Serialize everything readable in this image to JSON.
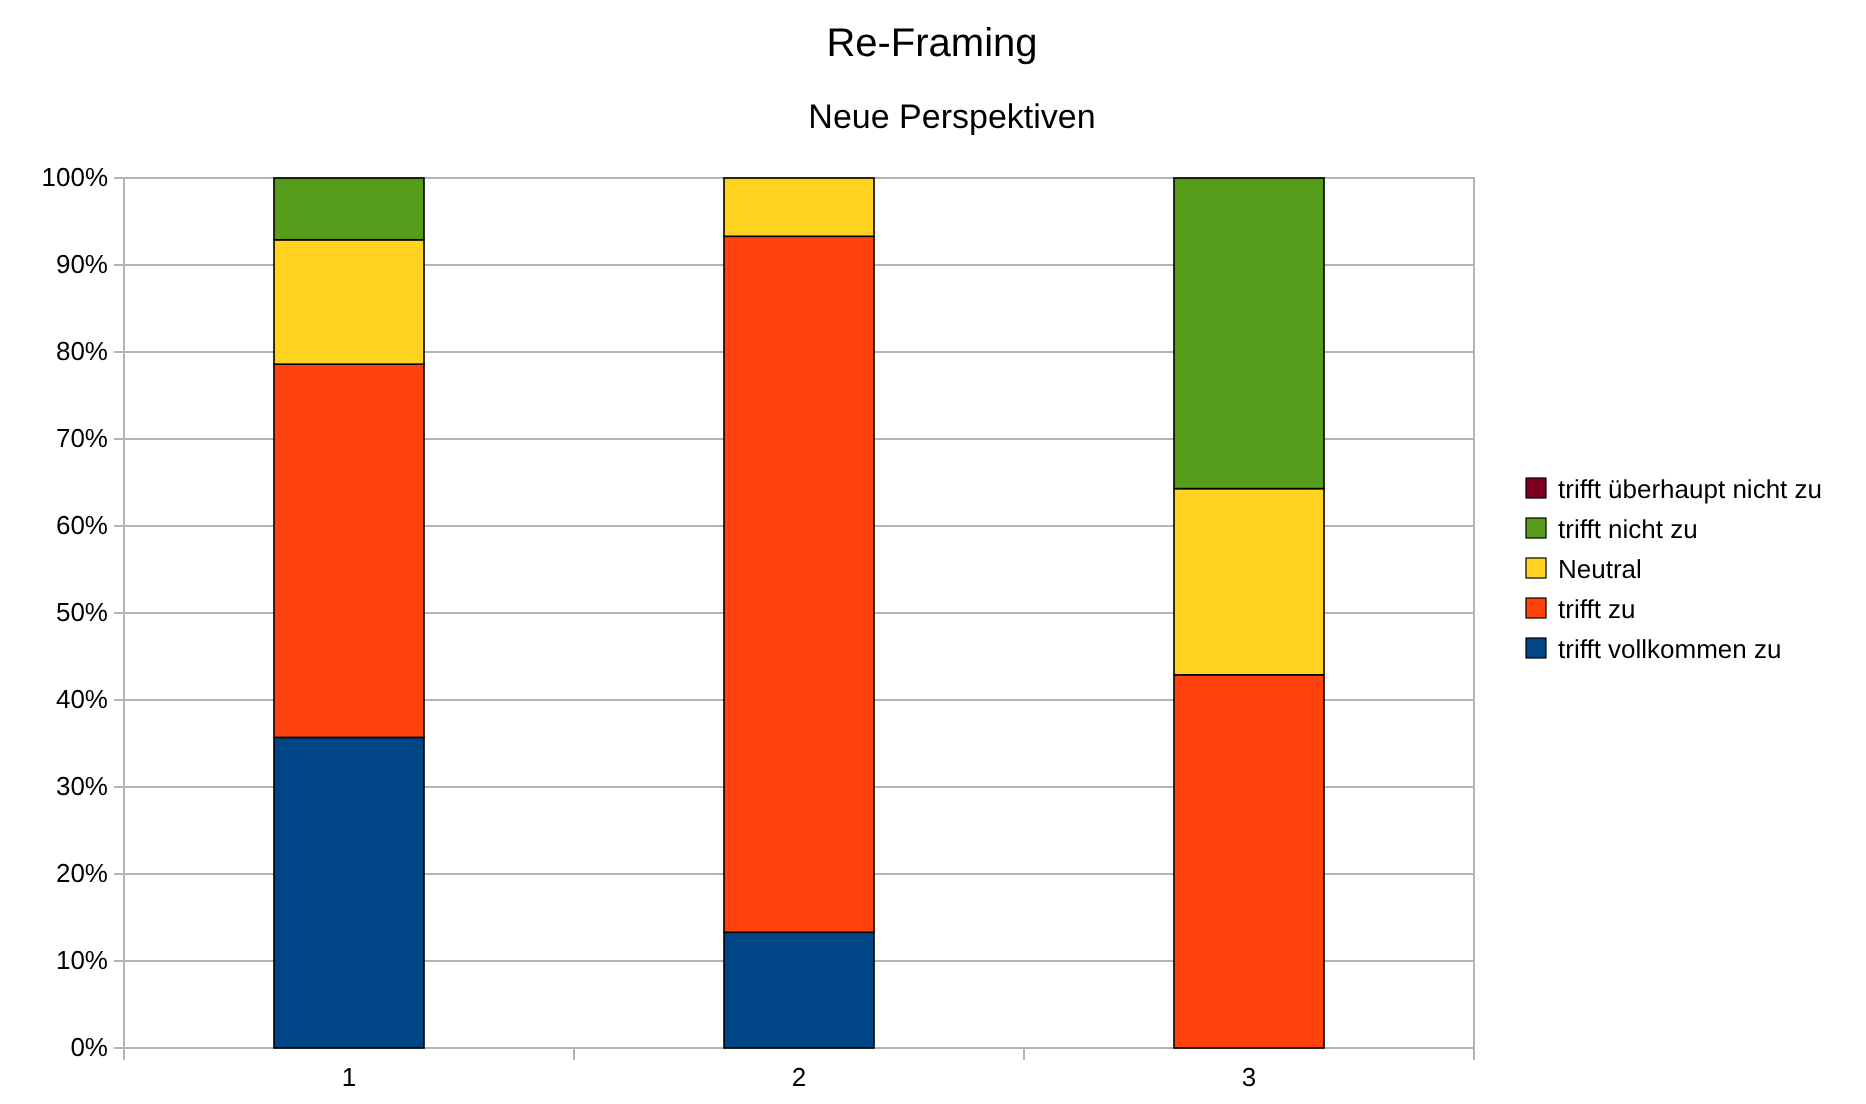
{
  "chart_data": {
    "type": "bar",
    "title": "Re-Framing",
    "subtitle": "Neue Perspektiven",
    "categories": [
      "1",
      "2",
      "3"
    ],
    "stacked": true,
    "series": [
      {
        "name": "trifft vollkommen zu",
        "color": "#004586",
        "values": [
          35.7,
          13.3,
          0
        ]
      },
      {
        "name": "trifft zu",
        "color": "#ff420e",
        "values": [
          42.9,
          80,
          42.9
        ]
      },
      {
        "name": "Neutral",
        "color": "#ffd320",
        "values": [
          14.3,
          6.7,
          21.4
        ]
      },
      {
        "name": "trifft nicht zu",
        "color": "#579d1c",
        "values": [
          7.1,
          0,
          35.7
        ]
      },
      {
        "name": "trifft überhaupt nicht zu",
        "color": "#7e0021",
        "values": [
          0,
          0,
          0
        ]
      }
    ],
    "ylim": [
      0,
      100
    ],
    "yticks": [
      {
        "value": 0,
        "label": "0%"
      },
      {
        "value": 10,
        "label": "10%"
      },
      {
        "value": 20,
        "label": "20%"
      },
      {
        "value": 30,
        "label": "30%"
      },
      {
        "value": 40,
        "label": "40%"
      },
      {
        "value": 50,
        "label": "50%"
      },
      {
        "value": 60,
        "label": "60%"
      },
      {
        "value": 70,
        "label": "70%"
      },
      {
        "value": 80,
        "label": "80%"
      },
      {
        "value": 90,
        "label": "90%"
      },
      {
        "value": 100,
        "label": "100%"
      }
    ],
    "grid": "y",
    "legend": "right"
  }
}
